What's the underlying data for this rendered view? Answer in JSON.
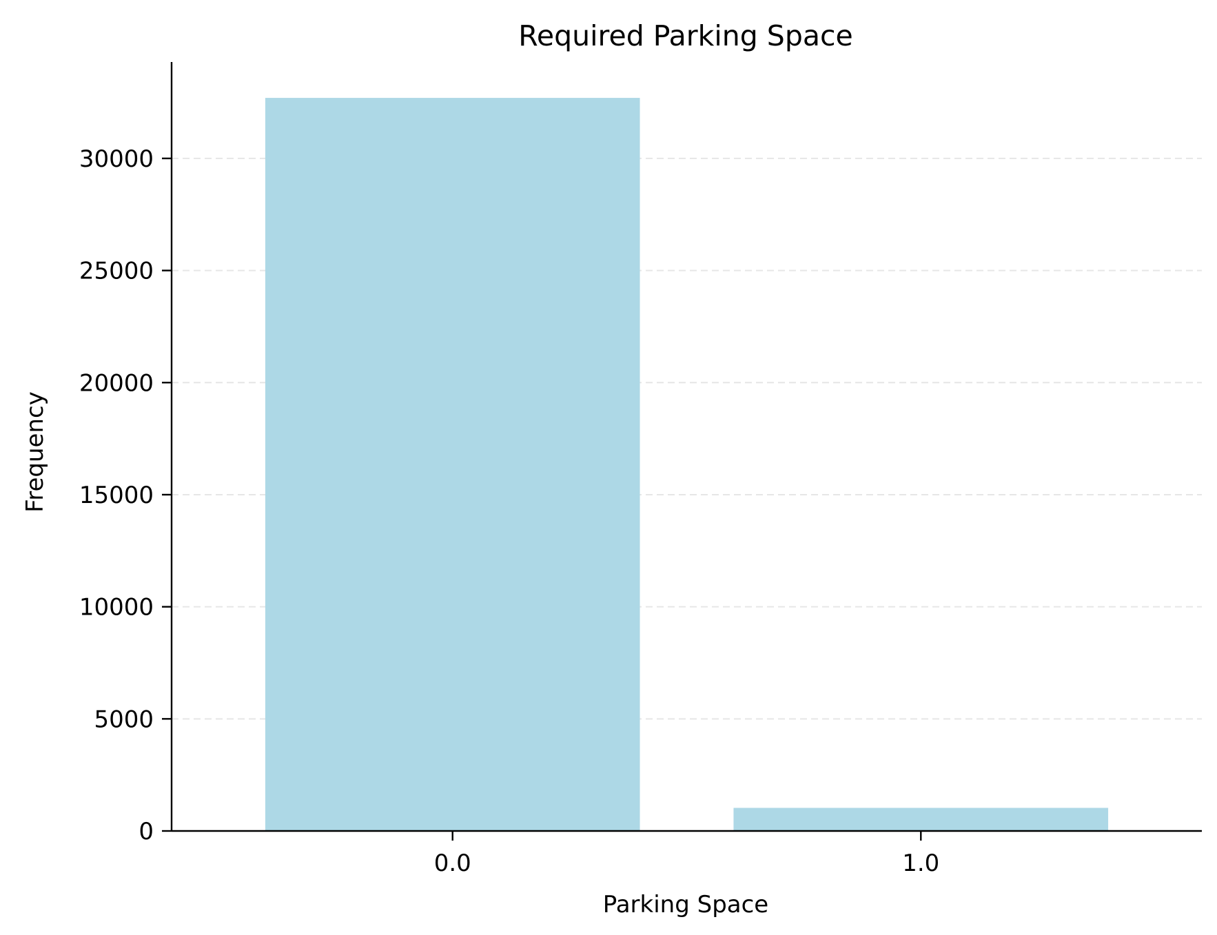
{
  "chart_data": {
    "type": "bar",
    "title": "Required Parking Space",
    "xlabel": "Parking Space",
    "ylabel": "Frequency",
    "categories": [
      "0.0",
      "1.0"
    ],
    "values": [
      32700,
      1030
    ],
    "ylim": [
      0,
      34300
    ],
    "yticks": [
      0,
      5000,
      10000,
      15000,
      20000,
      25000,
      30000
    ],
    "ytick_labels": [
      "0",
      "5000",
      "10000",
      "15000",
      "20000",
      "25000",
      "30000"
    ],
    "grid": "horizontal dashed",
    "bar_color": "#add8e6",
    "grid_color": "#e6e6e6",
    "axis_color": "#000000",
    "legend": "none"
  }
}
